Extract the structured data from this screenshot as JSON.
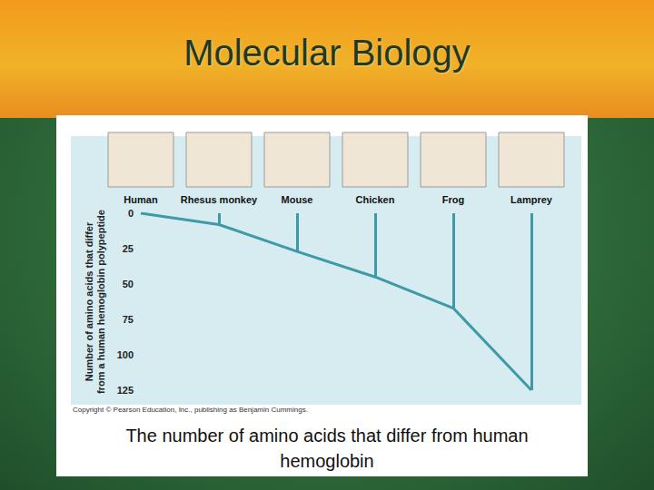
{
  "chart_data": {
    "type": "line",
    "title": "Molecular Biology",
    "caption": "The number of amino acids that differ from human hemoglobin",
    "source": "Copyright © Pearson Education, Inc., publishing as Benjamin Cummings.",
    "y_label": "Number of amino acids that differ from a human hemoglobin polypeptide",
    "categories": [
      "Human",
      "Rhesus monkey",
      "Mouse",
      "Chicken",
      "Frog",
      "Lamprey"
    ],
    "values": [
      0,
      8,
      27,
      45,
      67,
      125
    ],
    "color": "#3d9aa6",
    "ylim": [
      0,
      125
    ],
    "yticks": [
      0,
      25,
      50,
      75,
      100,
      125
    ],
    "grid": false
  }
}
